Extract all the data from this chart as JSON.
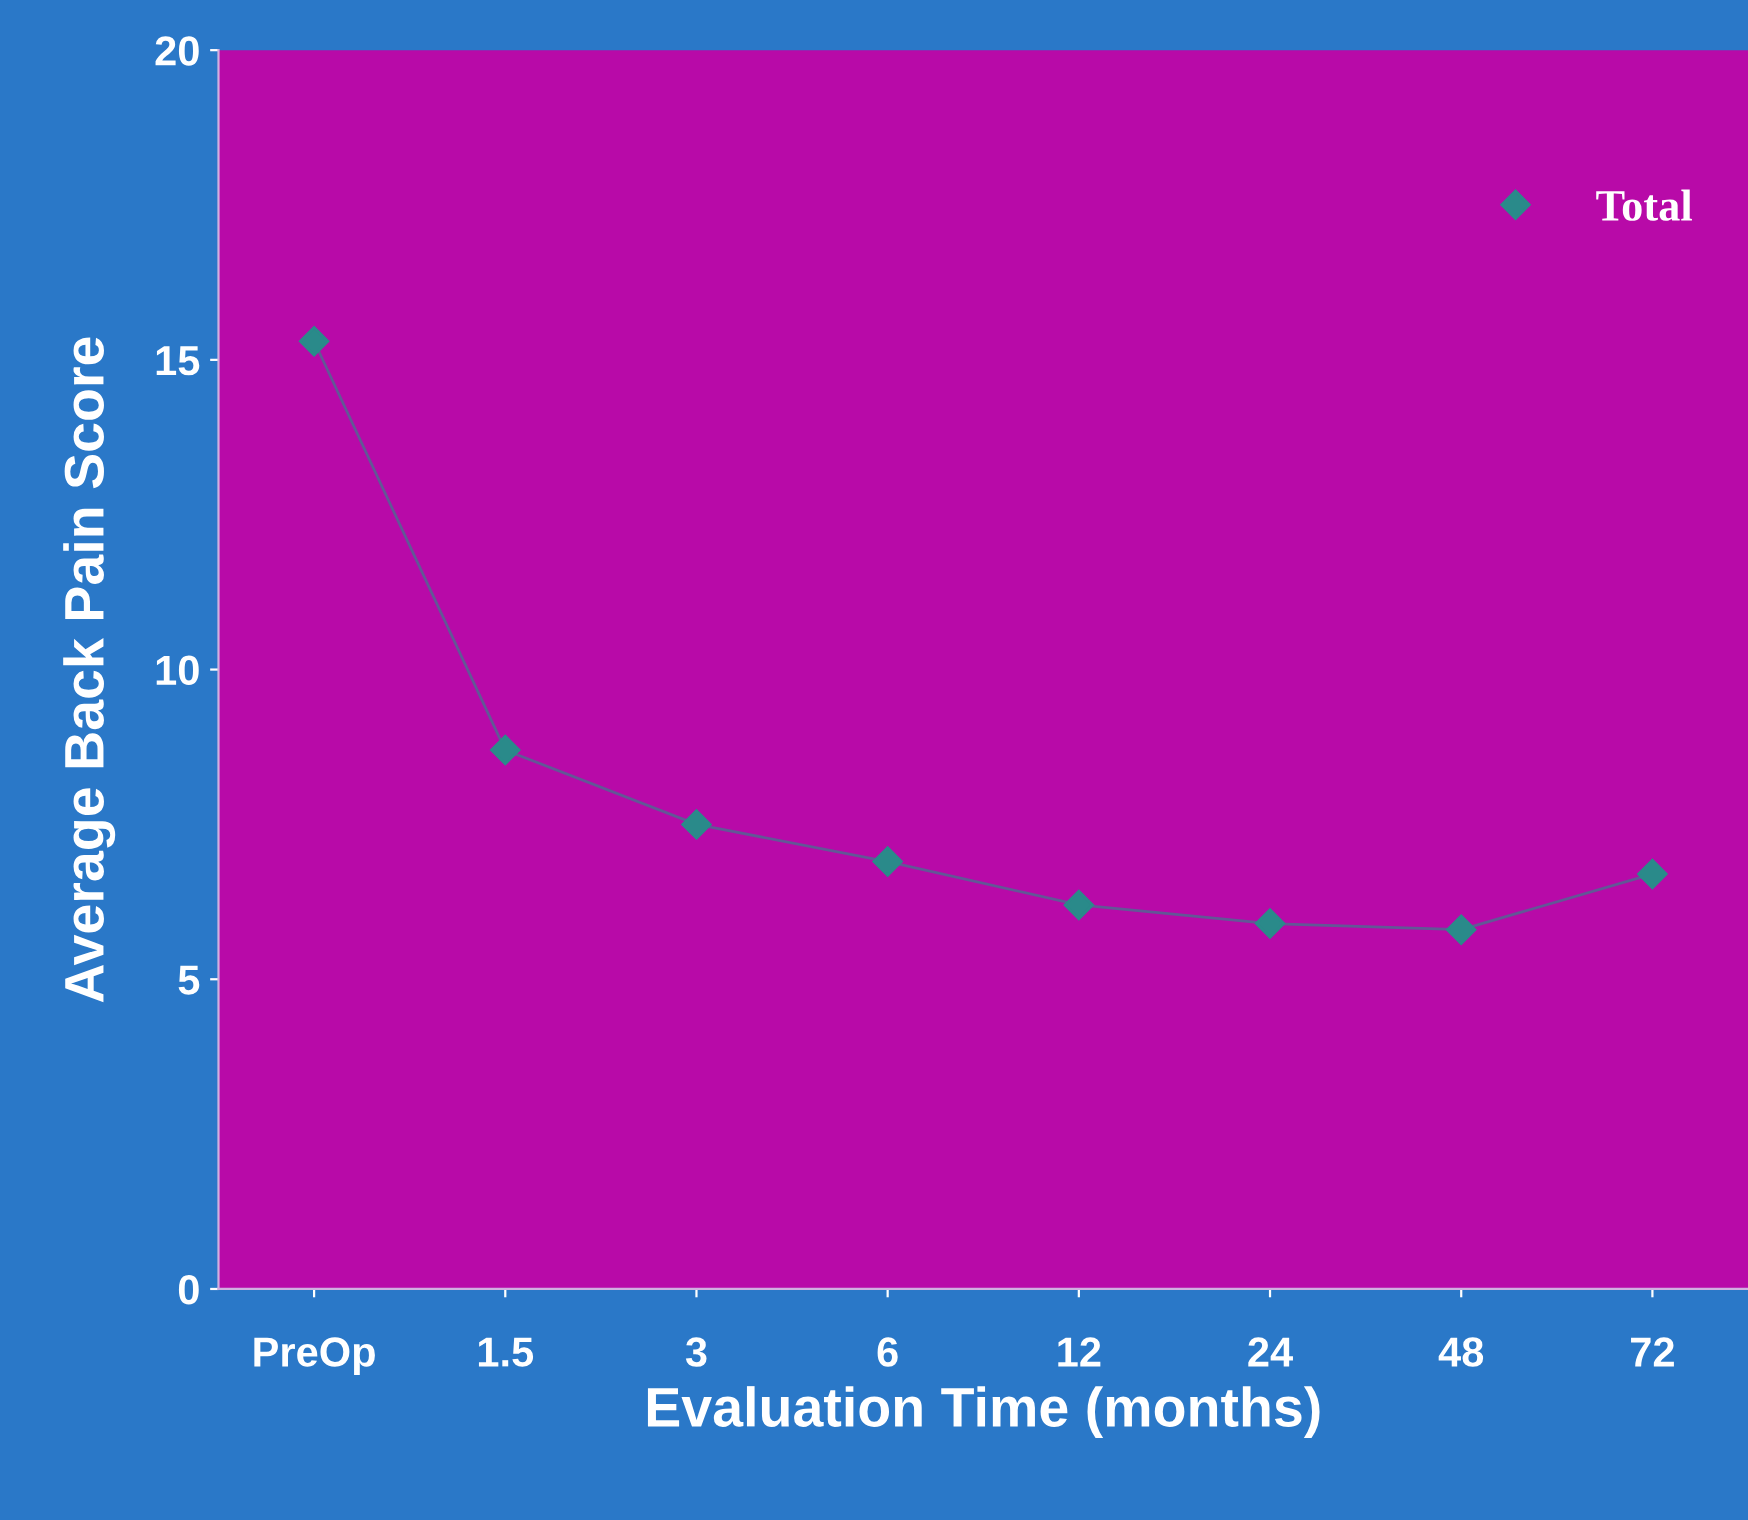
{
  "chart_data": {
    "type": "line",
    "xlabel": "Evaluation Time (months)",
    "ylabel": "Average Back Pain Score",
    "categories": [
      "PreOp",
      "1.5",
      "3",
      "6",
      "12",
      "24",
      "48",
      "72"
    ],
    "series": [
      {
        "name": "Total",
        "color": "#2a8a8a",
        "values": [
          15.3,
          8.7,
          7.5,
          6.9,
          6.2,
          5.9,
          5.8,
          6.7
        ]
      }
    ],
    "ylim": [
      0,
      20
    ],
    "yticks": [
      0,
      5,
      10,
      15,
      20
    ],
    "grid": false,
    "legend": "top right",
    "marker": "diamond",
    "line_style": "solid"
  }
}
